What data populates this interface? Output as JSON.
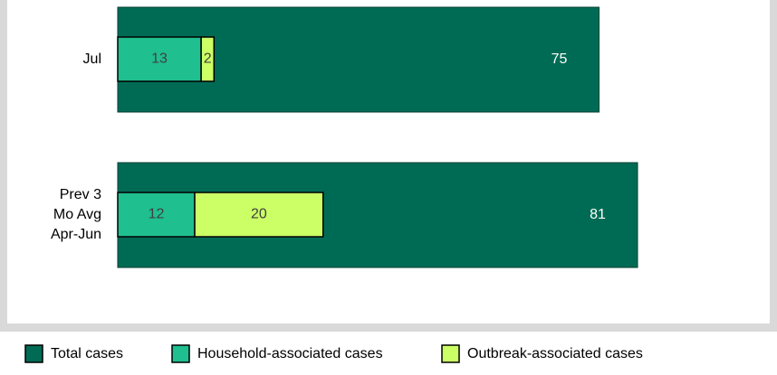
{
  "chart_data": {
    "type": "bar",
    "orientation": "horizontal",
    "categories": [
      "Jul",
      [
        "Prev 3",
        "Mo Avg",
        "Apr-Jun"
      ]
    ],
    "series": [
      {
        "name": "Total cases",
        "color": "#006b54",
        "values": [
          75,
          81
        ]
      },
      {
        "name": "Household-associated cases",
        "color": "#1fbf8f",
        "values": [
          13,
          12
        ]
      },
      {
        "name": "Outbreak-associated cases",
        "color": "#ccff66",
        "values": [
          2,
          20
        ]
      }
    ],
    "legend": "bottom"
  }
}
